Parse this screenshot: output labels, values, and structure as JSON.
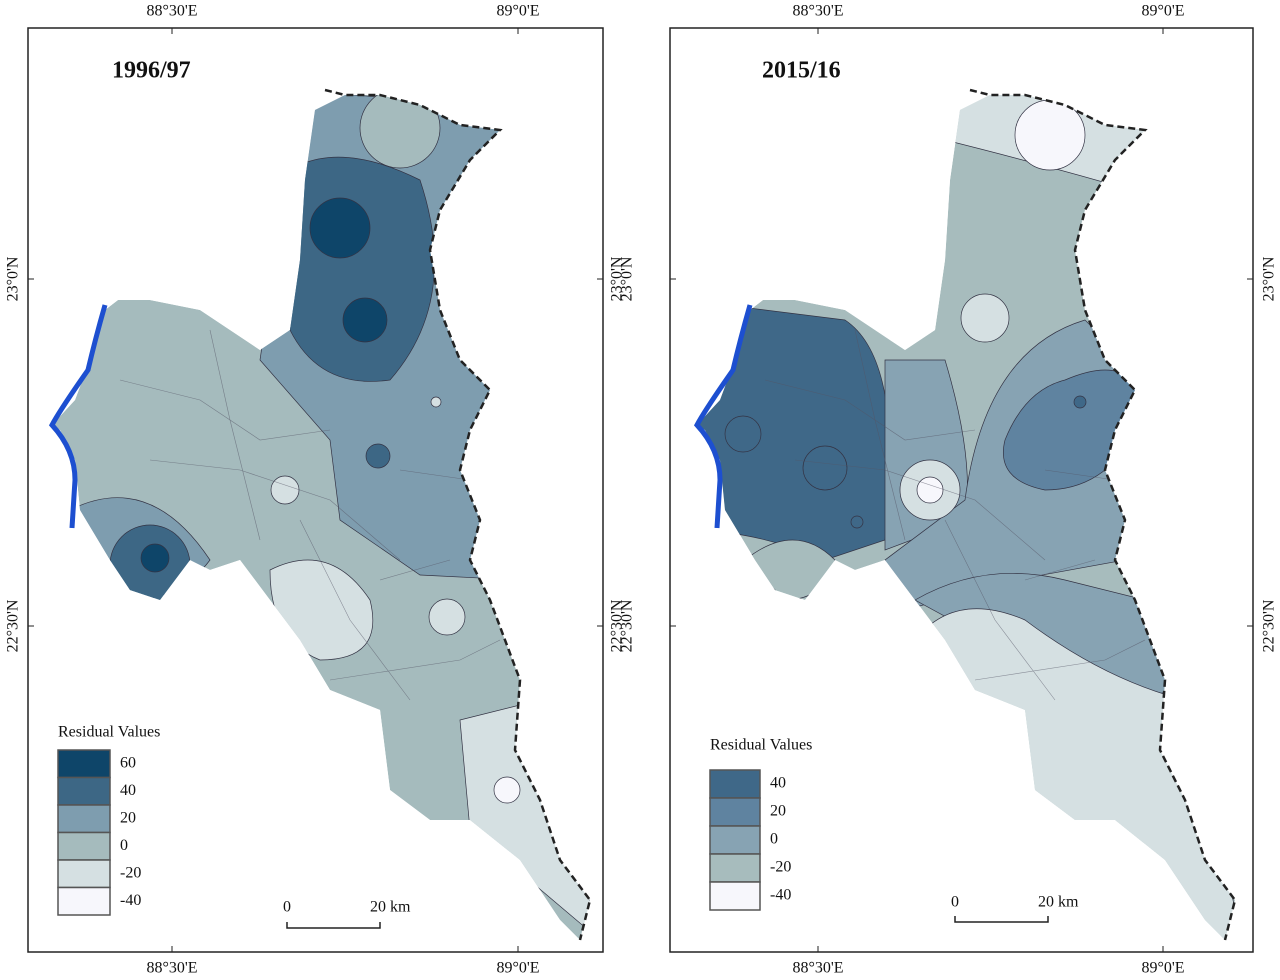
{
  "panels": [
    {
      "title": "1996/97",
      "lon_labels": [
        "88°30'E",
        "89°0'E"
      ],
      "lat_labels": [
        "23°0'N",
        "22°30'N"
      ],
      "legend": {
        "title": "Residual Values",
        "items": [
          {
            "label": "60",
            "color": "#0e4569"
          },
          {
            "label": "40",
            "color": "#3d6785"
          },
          {
            "label": "20",
            "color": "#7e9daf"
          },
          {
            "label": "0",
            "color": "#a5bbbd"
          },
          {
            "label": "-20",
            "color": "#d5e0e2"
          },
          {
            "label": "-40",
            "color": "#f7f7fc"
          }
        ]
      },
      "scale": {
        "start": "0",
        "end": "20 km"
      }
    },
    {
      "title": "2015/16",
      "lon_labels": [
        "88°30'E",
        "89°0'E"
      ],
      "lat_labels": [
        "23°0'N",
        "22°30'N"
      ],
      "legend": {
        "title": "Residual Values",
        "items": [
          {
            "label": "40",
            "color": "#3f6888"
          },
          {
            "label": "20",
            "color": "#5f83a0"
          },
          {
            "label": "0",
            "color": "#87a3b3"
          },
          {
            "label": "-20",
            "color": "#a7bcbd"
          },
          {
            "label": "-40",
            "color": "#f7f7fc"
          }
        ]
      },
      "scale": {
        "start": "0",
        "end": "20 km"
      }
    }
  ]
}
